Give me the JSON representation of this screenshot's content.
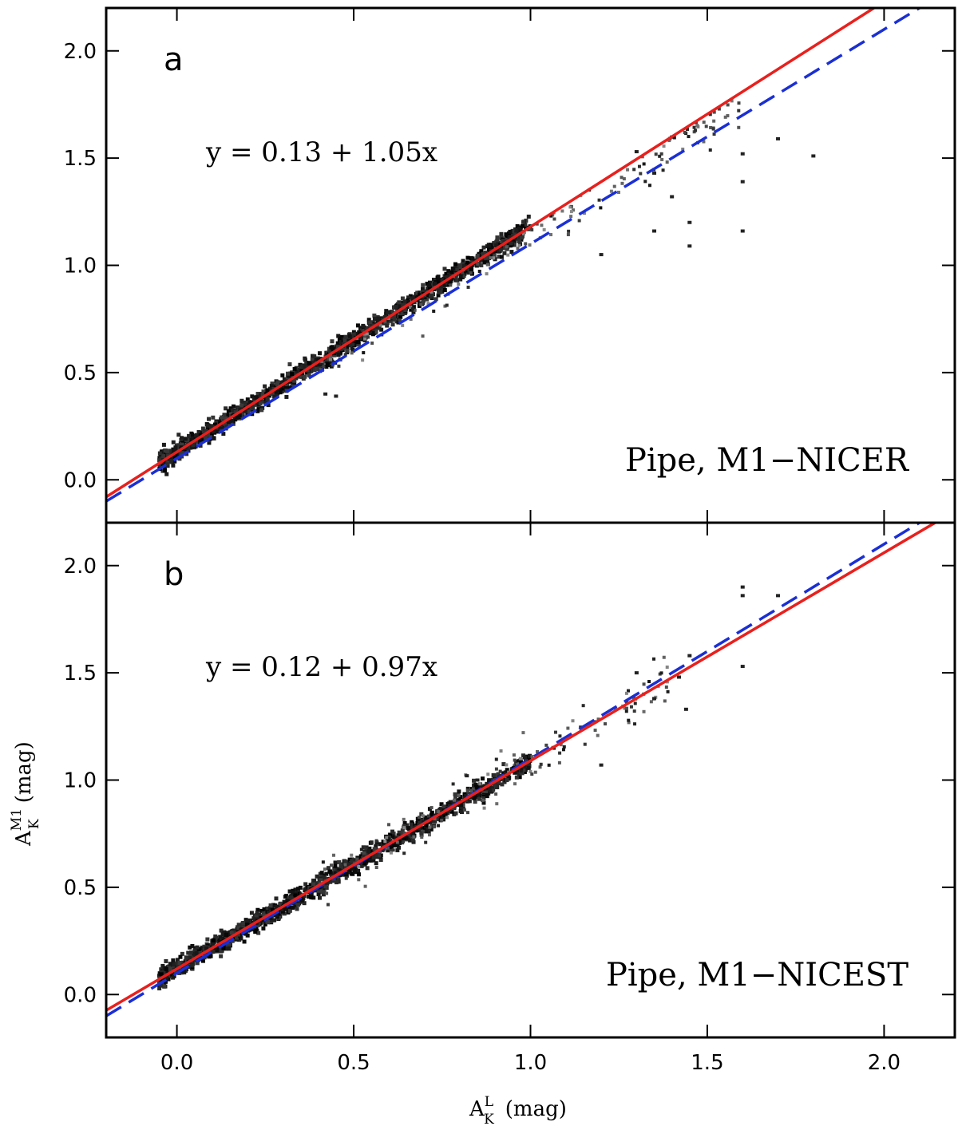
{
  "chart_data": [
    {
      "type": "scatter",
      "panel_letter": "a",
      "equation": "y = 0.13 + 1.05x",
      "panel_label": "Pipe, M1−NICER",
      "fit": {
        "intercept": 0.13,
        "slope": 1.05
      },
      "reference_line": {
        "intercept": 0.1,
        "slope": 1.0
      },
      "density_band": {
        "x_range": [
          -0.05,
          1.0
        ],
        "scatter_to": 1.8
      },
      "outliers": [
        {
          "x": 1.3,
          "y": 1.53
        },
        {
          "x": 1.35,
          "y": 1.43
        },
        {
          "x": 1.45,
          "y": 1.2
        },
        {
          "x": 1.45,
          "y": 1.09
        },
        {
          "x": 1.6,
          "y": 1.39
        },
        {
          "x": 1.6,
          "y": 1.16
        },
        {
          "x": 1.6,
          "y": 1.52
        },
        {
          "x": 1.7,
          "y": 1.59
        },
        {
          "x": 1.8,
          "y": 1.51
        },
        {
          "x": 1.35,
          "y": 1.16
        },
        {
          "x": 1.4,
          "y": 1.32
        },
        {
          "x": 1.2,
          "y": 1.05
        },
        {
          "x": 0.45,
          "y": 0.39
        },
        {
          "x": 0.42,
          "y": 0.4
        }
      ],
      "xlim": [
        -0.2,
        2.2
      ],
      "ylim": [
        -0.2,
        2.2
      ],
      "yticks": [
        "0.0",
        "0.5",
        "1.0",
        "1.5",
        "2.0"
      ],
      "series": [
        {
          "name": "fit",
          "style": "solid",
          "color": "#e8201d"
        },
        {
          "name": "one-to-one offset",
          "style": "dashed",
          "color": "#1a2fd4"
        }
      ]
    },
    {
      "type": "scatter",
      "panel_letter": "b",
      "equation": "y = 0.12 + 0.97x",
      "panel_label": "Pipe, M1−NICEST",
      "fit": {
        "intercept": 0.12,
        "slope": 0.97
      },
      "reference_line": {
        "intercept": 0.1,
        "slope": 1.0
      },
      "density_band": {
        "x_range": [
          -0.05,
          1.0
        ],
        "scatter_to": 1.6
      },
      "outliers": [
        {
          "x": 1.6,
          "y": 1.9
        },
        {
          "x": 1.6,
          "y": 1.86
        },
        {
          "x": 1.7,
          "y": 1.86
        },
        {
          "x": 1.6,
          "y": 1.53
        },
        {
          "x": 1.44,
          "y": 1.33
        },
        {
          "x": 1.35,
          "y": 1.38
        },
        {
          "x": 1.2,
          "y": 1.07
        },
        {
          "x": 1.45,
          "y": 1.58
        },
        {
          "x": 1.3,
          "y": 1.5
        },
        {
          "x": 1.42,
          "y": 1.48
        },
        {
          "x": 0.85,
          "y": 1.0
        },
        {
          "x": 0.82,
          "y": 1.02
        }
      ],
      "xlim": [
        -0.2,
        2.2
      ],
      "ylim": [
        -0.2,
        2.2
      ],
      "yticks": [
        "0.0",
        "0.5",
        "1.0",
        "1.5",
        "2.0"
      ],
      "series": [
        {
          "name": "fit",
          "style": "solid",
          "color": "#e8201d"
        },
        {
          "name": "one-to-one offset",
          "style": "dashed",
          "color": "#1a2fd4"
        }
      ]
    }
  ],
  "shared_axes": {
    "xticks": [
      "0.0",
      "0.5",
      "1.0",
      "1.5",
      "2.0"
    ],
    "xlabel_main": "A",
    "xlabel_sub": "K",
    "xlabel_sup": "L",
    "xlabel_unit": "(mag)",
    "ylabel_main": "A",
    "ylabel_sub": "K",
    "ylabel_sup": "M1",
    "ylabel_unit": "(mag)"
  }
}
